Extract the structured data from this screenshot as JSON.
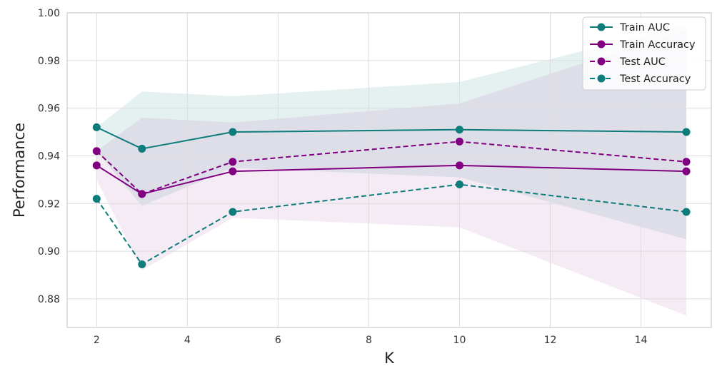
{
  "chart_data": {
    "type": "line",
    "xlabel": "K",
    "ylabel": "Performance",
    "xlim": [
      1.35,
      15.55
    ],
    "ylim": [
      0.868,
      1.0
    ],
    "xticks": [
      2,
      4,
      6,
      8,
      10,
      12,
      14
    ],
    "yticks": [
      0.88,
      0.9,
      0.92,
      0.94,
      0.96,
      0.98,
      1.0
    ],
    "ytick_labels": [
      "0.88",
      "0.90",
      "0.92",
      "0.94",
      "0.96",
      "0.98",
      "1.00"
    ],
    "grid": true,
    "legend_position": "top-right",
    "x": [
      2,
      3,
      5,
      10,
      15
    ],
    "series": [
      {
        "name": "Train AUC",
        "values": [
          0.952,
          0.943,
          0.95,
          0.951,
          0.95
        ],
        "color": "#0e7c7b",
        "style": "solid"
      },
      {
        "name": "Train Accuracy",
        "values": [
          0.936,
          0.924,
          0.9335,
          0.936,
          0.9335
        ],
        "color": "#800080",
        "style": "solid"
      },
      {
        "name": "Test AUC",
        "values": [
          0.942,
          0.924,
          0.9375,
          0.946,
          0.9375
        ],
        "color": "#800080",
        "style": "dashed"
      },
      {
        "name": "Test Accuracy",
        "values": [
          0.922,
          0.8945,
          0.9165,
          0.928,
          0.9165
        ],
        "color": "#0e7c7b",
        "style": "dashed"
      }
    ],
    "bands": [
      {
        "color": "#0e7c7b",
        "opacity": 0.11,
        "lower": [
          0.942,
          0.919,
          0.935,
          0.931,
          0.905
        ],
        "upper": [
          0.952,
          0.967,
          0.965,
          0.971,
          0.995
        ]
      },
      {
        "color": "#800080",
        "opacity": 0.08,
        "lower": [
          0.93,
          0.892,
          0.914,
          0.91,
          0.873
        ],
        "upper": [
          0.942,
          0.956,
          0.954,
          0.962,
          0.993
        ]
      }
    ]
  }
}
